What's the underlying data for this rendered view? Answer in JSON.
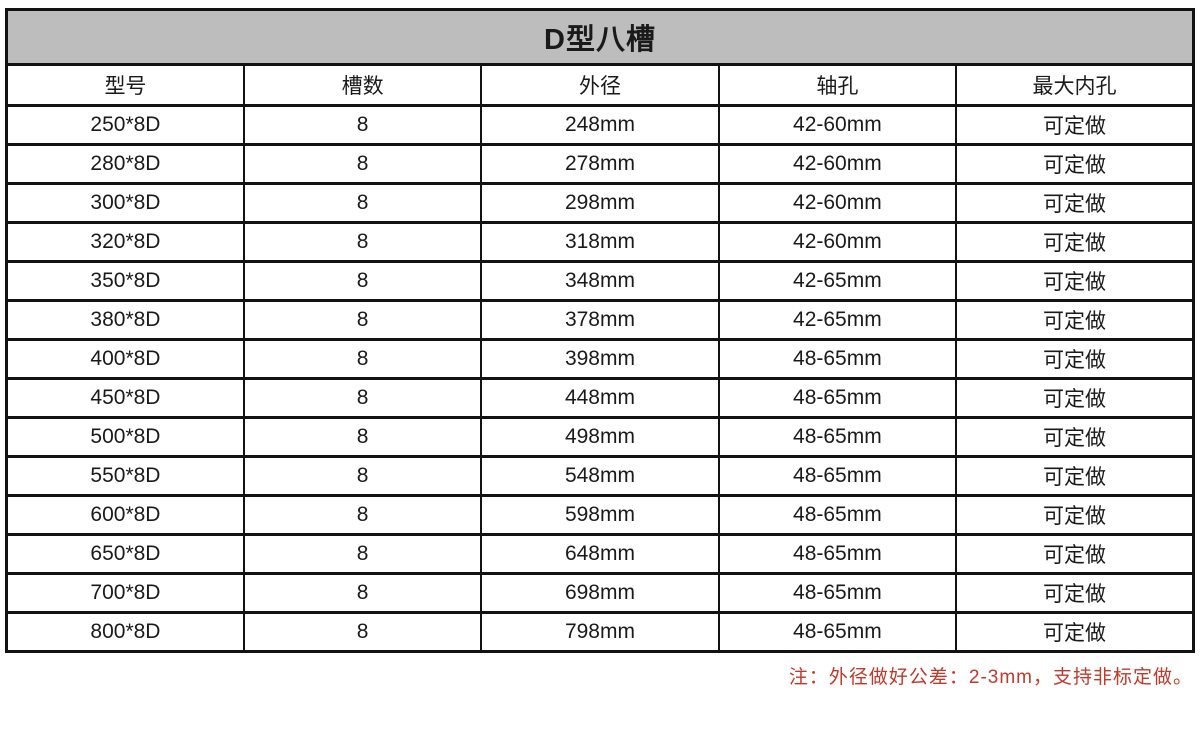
{
  "chart_data": {
    "type": "table",
    "title": "D型八槽",
    "columns": [
      "型号",
      "槽数",
      "外径",
      "轴孔",
      "最大内孔"
    ],
    "rows": [
      [
        "250*8D",
        "8",
        "248mm",
        "42-60mm",
        "可定做"
      ],
      [
        "280*8D",
        "8",
        "278mm",
        "42-60mm",
        "可定做"
      ],
      [
        "300*8D",
        "8",
        "298mm",
        "42-60mm",
        "可定做"
      ],
      [
        "320*8D",
        "8",
        "318mm",
        "42-60mm",
        "可定做"
      ],
      [
        "350*8D",
        "8",
        "348mm",
        "42-65mm",
        "可定做"
      ],
      [
        "380*8D",
        "8",
        "378mm",
        "42-65mm",
        "可定做"
      ],
      [
        "400*8D",
        "8",
        "398mm",
        "48-65mm",
        "可定做"
      ],
      [
        "450*8D",
        "8",
        "448mm",
        "48-65mm",
        "可定做"
      ],
      [
        "500*8D",
        "8",
        "498mm",
        "48-65mm",
        "可定做"
      ],
      [
        "550*8D",
        "8",
        "548mm",
        "48-65mm",
        "可定做"
      ],
      [
        "600*8D",
        "8",
        "598mm",
        "48-65mm",
        "可定做"
      ],
      [
        "650*8D",
        "8",
        "648mm",
        "48-65mm",
        "可定做"
      ],
      [
        "700*8D",
        "8",
        "698mm",
        "48-65mm",
        "可定做"
      ],
      [
        "800*8D",
        "8",
        "798mm",
        "48-65mm",
        "可定做"
      ]
    ],
    "note": "注：外径做好公差：2-3mm，支持非标定做。"
  },
  "colors": {
    "title_background": "#bdbdbd",
    "border": "#121212",
    "text": "#1a1a1a",
    "note_red": "#c0392b"
  }
}
